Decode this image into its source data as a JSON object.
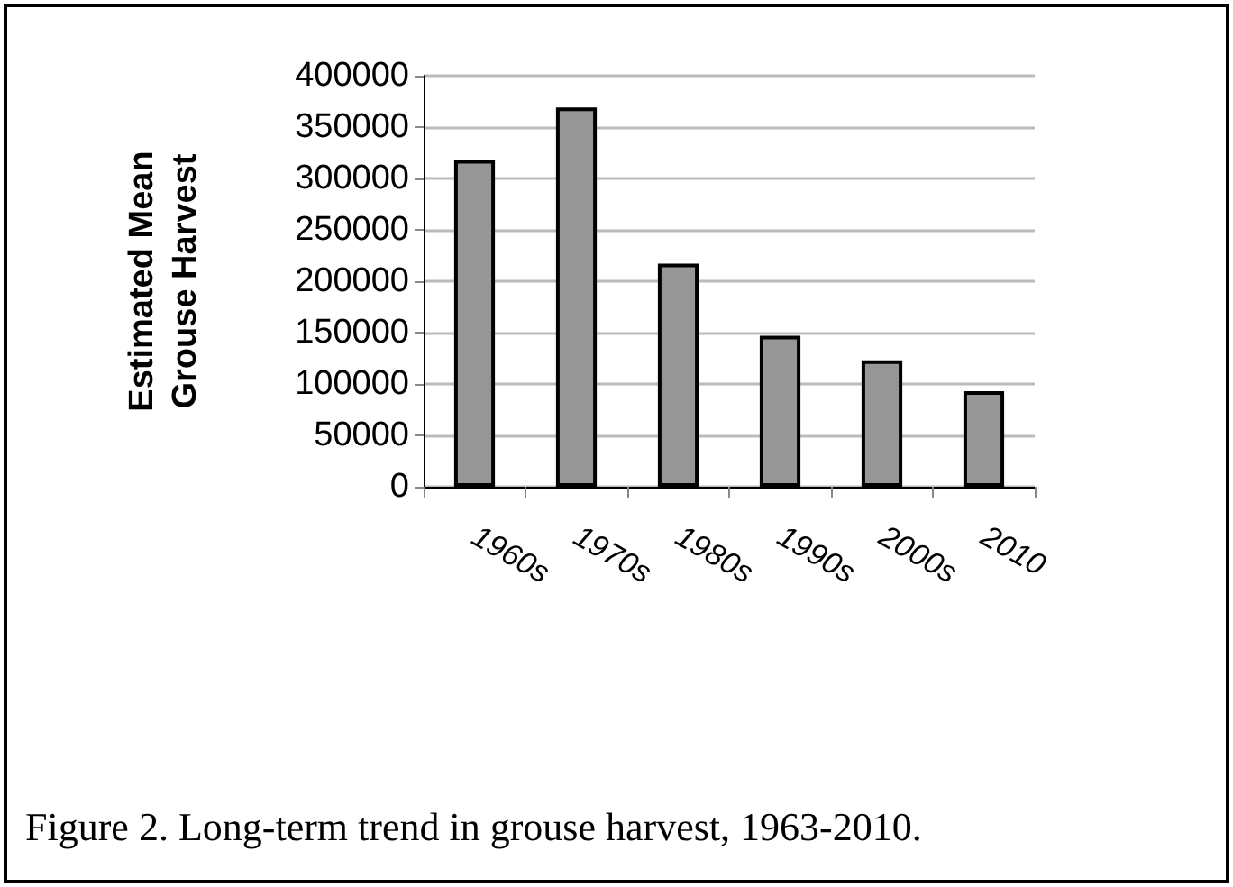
{
  "chart_data": {
    "type": "bar",
    "ylabel": "Estimated Mean Grouse Harvest",
    "categories": [
      "1960s",
      "1970s",
      "1980s",
      "1990s",
      "2000s",
      "2010"
    ],
    "values": [
      318000,
      369000,
      217000,
      147000,
      123000,
      93000
    ],
    "color": "#969696",
    "ylim": [
      0,
      400000
    ],
    "yticks": [
      0,
      50000,
      100000,
      150000,
      200000,
      250000,
      300000,
      350000,
      400000
    ],
    "grid": "y",
    "annotations": [
      "Figure 2. Long-term trend in grouse harvest, 1963-2010."
    ]
  }
}
